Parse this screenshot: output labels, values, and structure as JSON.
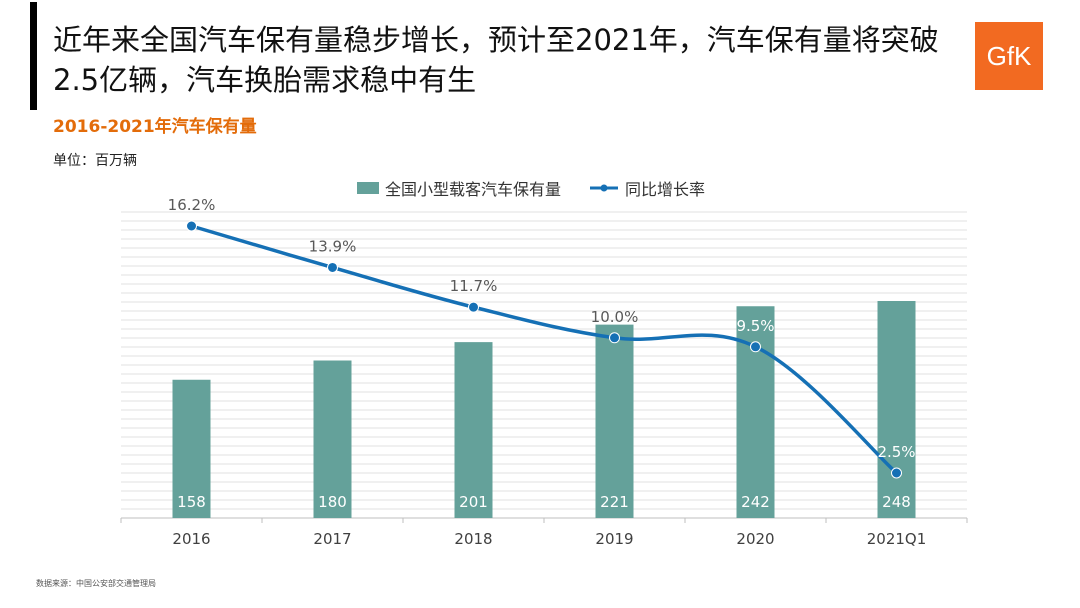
{
  "header": {
    "title": "近年来全国汽车保有量稳步增长，预计至2021年，汽车保有量将突破2.5亿辆，汽车换胎需求稳中有生",
    "logo_text": "GfK"
  },
  "chart_section": {
    "subtitle": "2016-2021年汽车保有量",
    "unit": "单位：百万辆"
  },
  "footer": {
    "source": "数据来源：中国公安部交通管理局"
  },
  "colors": {
    "bar": "#64a19a",
    "line": "#1570b5",
    "accent": "#e36c0a",
    "logo": "#f26a21"
  },
  "chart_data": {
    "type": "bar+line",
    "categories": [
      "2016",
      "2017",
      "2018",
      "2019",
      "2020",
      "2021Q1"
    ],
    "series": [
      {
        "name": "全国小型载客汽车保有量",
        "type": "bar",
        "values": [
          158,
          180,
          201,
          221,
          242,
          248
        ],
        "labels": [
          "158",
          "180",
          "201",
          "221",
          "242",
          "248"
        ]
      },
      {
        "name": "同比增长率",
        "type": "line",
        "values": [
          16.2,
          13.9,
          11.7,
          10.0,
          9.5,
          2.5
        ],
        "labels": [
          "16.2%",
          "13.9%",
          "11.7%",
          "10.0%",
          "9.5%",
          "2.5%"
        ]
      }
    ],
    "legend_position": "top",
    "grid": true
  }
}
